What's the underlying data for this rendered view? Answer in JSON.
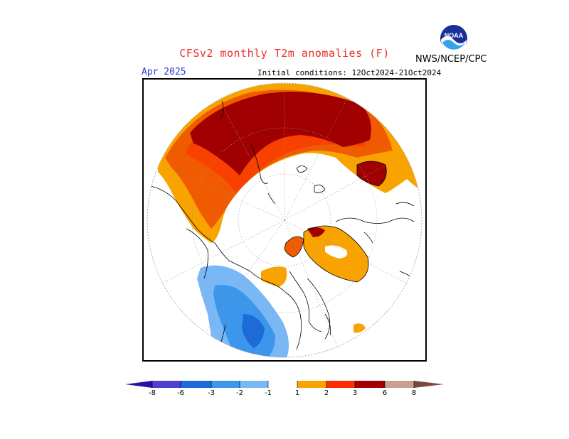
{
  "header": {
    "title": "CFSv2 monthly T2m anomalies (F)",
    "credit": "NWS/NCEP/CPC",
    "month": "Apr 2025",
    "initial_conditions": "Initial conditions: 12Oct2024-21Oct2024"
  },
  "logo": {
    "name": "noaa-logo",
    "text": "NOAA"
  },
  "colors": {
    "neg8": "#2a10a8",
    "neg6": "#5040d0",
    "neg3": "#1e6ad6",
    "neg2": "#3c96ec",
    "neg1": "#7ab8f5",
    "zero": "#ffffff",
    "pos1": "#f8a300",
    "pos2": "#f05a00",
    "pos3": "#ff2e00",
    "pos6": "#a00000",
    "pos8": "#c8a090",
    "pos9": "#7a4a3a"
  },
  "legend": {
    "ticks": [
      "-8",
      "-6",
      "-3",
      "-2",
      "-1",
      "1",
      "2",
      "3",
      "6",
      "8"
    ]
  }
}
